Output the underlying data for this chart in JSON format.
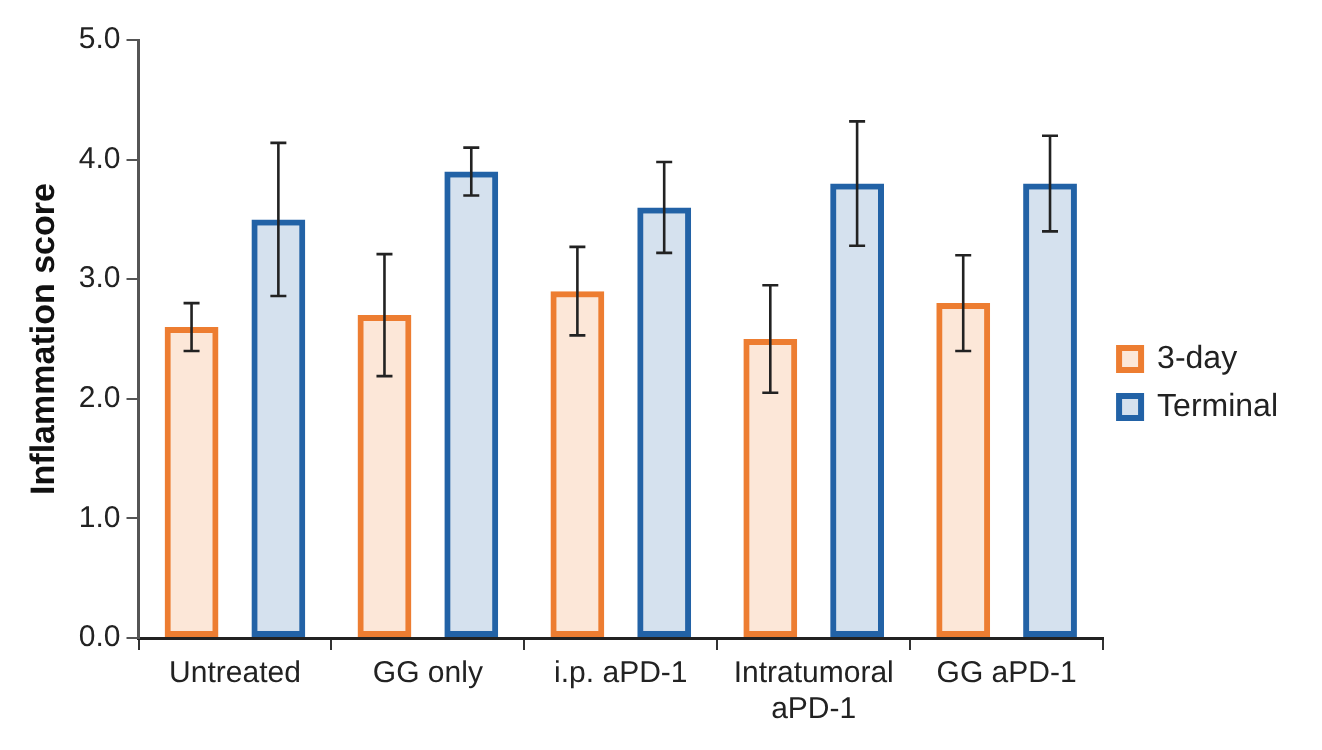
{
  "chart_data": {
    "type": "bar",
    "ylabel": "Inflammation score",
    "categories": [
      "Untreated",
      "GG only",
      "i.p. aPD-1",
      "Intratumoral aPD-1",
      "GG aPD-1"
    ],
    "series": [
      {
        "name": "3-day",
        "color": "#ed7d31",
        "values": [
          2.6,
          2.7,
          2.9,
          2.5,
          2.8
        ],
        "errors": [
          0.2,
          0.51,
          0.37,
          0.45,
          0.4
        ]
      },
      {
        "name": "Terminal",
        "color": "#2262a6",
        "values": [
          3.5,
          3.9,
          3.6,
          3.8,
          3.8
        ],
        "errors": [
          0.64,
          0.2,
          0.38,
          0.52,
          0.4
        ]
      }
    ],
    "ylim": [
      0,
      5
    ],
    "yticks": [
      {
        "value": 0,
        "label": "0.0"
      },
      {
        "value": 1,
        "label": "1.0"
      },
      {
        "value": 2,
        "label": "2.0"
      },
      {
        "value": 3,
        "label": "3.0"
      },
      {
        "value": 4,
        "label": "4.0"
      },
      {
        "value": 5,
        "label": "5.0"
      }
    ],
    "grid": false,
    "legend": "right"
  }
}
